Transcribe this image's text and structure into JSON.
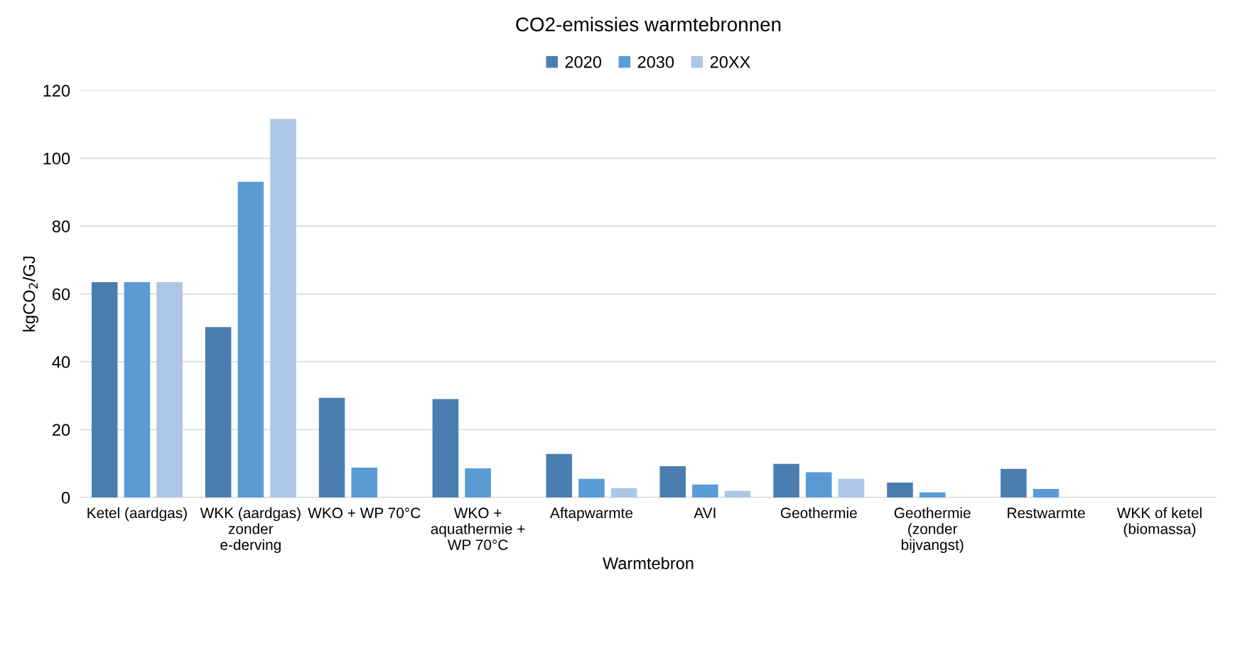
{
  "chart_data": {
    "type": "bar",
    "title": "CO2-emissies warmtebronnen",
    "xlabel": "Warmtebron",
    "ylabel": "kgCO$_{2}$/GJ",
    "categories": [
      "Ketel (aardgas)",
      "WKK (aardgas) zonder e-derving",
      "WKO + WP 70°C",
      "WKO + aquathermie + WP 70°C",
      "Aftapwarmte",
      "AVI",
      "Geothermie",
      "Geothermie (zonder bijvangst)",
      "Restwarmte",
      "WKK of ketel (biomassa)"
    ],
    "series": [
      {
        "name": "2020",
        "color": "#4a7eb0",
        "values": [
          63.5,
          50.2,
          29.4,
          29.0,
          12.8,
          9.2,
          9.9,
          4.4,
          8.4,
          0
        ]
      },
      {
        "name": "2030",
        "color": "#5b9bd5",
        "values": [
          63.5,
          93.1,
          8.8,
          8.6,
          5.5,
          3.8,
          7.4,
          1.5,
          2.5,
          0
        ]
      },
      {
        "name": "20XX",
        "color": "#adc6e5",
        "values": [
          63.5,
          111.6,
          0,
          0,
          2.7,
          1.9,
          5.5,
          0,
          0,
          0
        ]
      }
    ],
    "ylim": [
      0,
      120
    ],
    "yticks": [
      0,
      20,
      40,
      60,
      80,
      100,
      120
    ],
    "grid": "y",
    "legend": "top"
  }
}
